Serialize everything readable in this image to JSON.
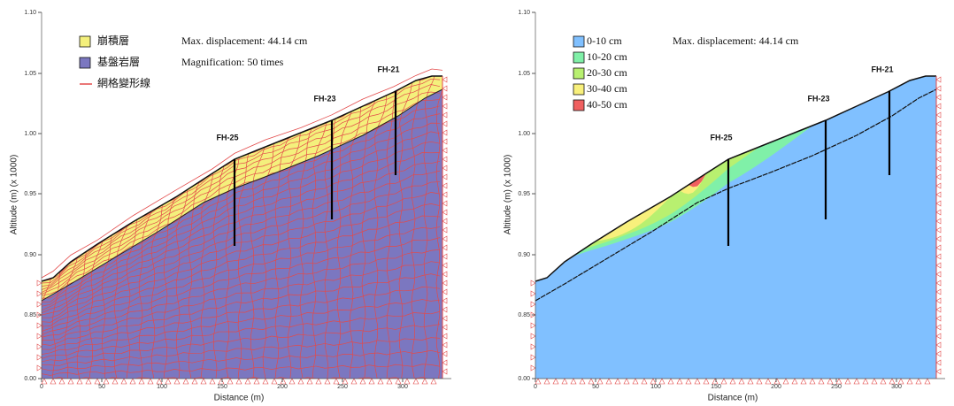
{
  "panels": [
    {
      "legend": [
        {
          "label": "崩積層",
          "color": "#f4f07c"
        },
        {
          "label": "基盤岩層",
          "color": "#7b77c0"
        },
        {
          "label": "網格變形線",
          "color": "#e34a4a"
        }
      ],
      "notes": [
        "Max. displacement: 44.14 cm",
        "Magnification: 50 times"
      ],
      "boreholes": [
        "FH-25",
        "FH-23",
        "FH-21"
      ],
      "y_label": "Altitude (m) (x 1000)",
      "x_label": "Distance (m)",
      "yticks": [
        "0.00",
        "0.85",
        "0.90",
        "0.95",
        "1.00",
        "1.05",
        "1.10"
      ],
      "xticks": [
        "0",
        "50",
        "100",
        "150",
        "200",
        "250",
        "300"
      ]
    },
    {
      "legend": [
        {
          "label": "0-10 cm",
          "color": "#80c0ff"
        },
        {
          "label": "10-20 cm",
          "color": "#80f0a8"
        },
        {
          "label": "20-30 cm",
          "color": "#b8f070"
        },
        {
          "label": "30-40 cm",
          "color": "#f8f07c"
        },
        {
          "label": "40-50 cm",
          "color": "#f06060"
        }
      ],
      "notes": [
        "Max. displacement: 44.14 cm"
      ],
      "boreholes": [
        "FH-25",
        "FH-23",
        "FH-21"
      ],
      "y_label": "Altitude (m) (x 1000)",
      "x_label": "Distance (m)",
      "yticks": [
        "0.00",
        "0.85",
        "0.90",
        "0.95",
        "1.00",
        "1.05",
        "1.10"
      ],
      "xticks": [
        "0",
        "50",
        "100",
        "150",
        "200",
        "250",
        "300"
      ]
    }
  ]
}
